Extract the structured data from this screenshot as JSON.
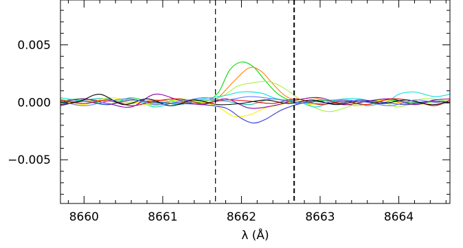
{
  "chart_data": {
    "type": "line",
    "title": "",
    "xlabel": "λ (Å)",
    "ylabel": "",
    "xlim": [
      8659.7,
      8664.65
    ],
    "ylim": [
      -0.0088,
      0.0089
    ],
    "grid": false,
    "x_ticks": [
      8660,
      8661,
      8662,
      8663,
      8664
    ],
    "x_tick_labels": [
      "8660",
      "8661",
      "8662",
      "8663",
      "8664"
    ],
    "y_ticks": [
      -0.005,
      0.0,
      0.005
    ],
    "y_tick_labels": [
      "−0.005",
      "0.000",
      "0.005"
    ],
    "vertical_lines": [
      {
        "x": 8661.67,
        "style": "dashed",
        "width": "thin"
      },
      {
        "x": 8662.67,
        "style": "dashed",
        "width": "thick"
      }
    ],
    "series": [
      {
        "color": "#00dd00",
        "x": [
          8659.7,
          8660.0,
          8660.3,
          8660.6,
          8660.9,
          8661.2,
          8661.5,
          8661.7,
          8661.85,
          8662.0,
          8662.15,
          8662.3,
          8662.45,
          8662.6,
          8662.75,
          8663.0,
          8663.3,
          8663.6,
          8663.9,
          8664.2,
          8664.5,
          8664.65
        ],
        "y": [
          0.0001,
          0.0003,
          -0.0002,
          0.0004,
          -0.0001,
          0.0002,
          0.0,
          0.0008,
          0.0028,
          0.0035,
          0.0031,
          0.0019,
          0.0008,
          0.0002,
          -0.0001,
          0.0002,
          -0.0002,
          0.0001,
          0.0002,
          -0.0001,
          0.0001,
          0.0
        ]
      },
      {
        "color": "#ff7f00",
        "x": [
          8659.7,
          8660.0,
          8660.3,
          8660.6,
          8660.9,
          8661.2,
          8661.5,
          8661.7,
          8661.9,
          8662.1,
          8662.25,
          8662.4,
          8662.55,
          8662.7,
          8662.9,
          8663.2,
          8663.5,
          8663.8,
          8664.1,
          8664.4,
          8664.65
        ],
        "y": [
          -0.0002,
          0.0002,
          0.0001,
          -0.0001,
          0.0002,
          0.0,
          -0.0001,
          0.0004,
          0.0018,
          0.003,
          0.0027,
          0.0016,
          0.0006,
          0.0002,
          0.0004,
          0.0,
          -0.0003,
          0.0002,
          -0.0001,
          0.0001,
          -0.0001
        ]
      },
      {
        "color": "#aaee44",
        "x": [
          8659.7,
          8660.0,
          8660.3,
          8660.6,
          8660.9,
          8661.2,
          8661.5,
          8661.75,
          8661.95,
          8662.15,
          8662.35,
          8662.55,
          8662.8,
          8663.1,
          8663.4,
          8663.7,
          8664.0,
          8664.3,
          8664.65
        ],
        "y": [
          0.0003,
          -0.0001,
          0.0002,
          0.0,
          -0.0002,
          0.0003,
          0.0001,
          0.0005,
          0.0014,
          0.0017,
          0.0018,
          0.0012,
          0.0,
          -0.0008,
          -0.0003,
          0.0002,
          -0.0004,
          0.0003,
          0.0001
        ]
      },
      {
        "color": "#00dddd",
        "x": [
          8659.7,
          8660.0,
          8660.3,
          8660.6,
          8660.9,
          8661.2,
          8661.5,
          8661.8,
          8662.0,
          8662.25,
          8662.45,
          8662.7,
          8662.95,
          8663.2,
          8663.5,
          8663.8,
          8664.0,
          8664.2,
          8664.45,
          8664.65
        ],
        "y": [
          0.0004,
          0.0001,
          -0.0002,
          0.0003,
          -0.0004,
          0.0001,
          0.0003,
          0.0006,
          0.0009,
          0.0008,
          0.0003,
          0.0001,
          -0.0004,
          0.0002,
          0.0003,
          -0.0001,
          0.0007,
          0.0009,
          0.0005,
          0.0007
        ]
      },
      {
        "color": "#11bbaa",
        "x": [
          8659.7,
          8660.0,
          8660.3,
          8660.6,
          8660.9,
          8661.2,
          8661.5,
          8661.8,
          8662.1,
          8662.4,
          8662.7,
          8663.0,
          8663.3,
          8663.6,
          8663.9,
          8664.2,
          8664.45,
          8664.65
        ],
        "y": [
          -0.0001,
          0.0002,
          0.0003,
          -0.0003,
          0.0001,
          -0.0002,
          0.0002,
          0.0001,
          -0.0002,
          0.0003,
          -0.0001,
          0.0001,
          0.0002,
          -0.0003,
          0.0001,
          0.0,
          0.0001,
          0.0
        ]
      },
      {
        "color": "#ffee00",
        "x": [
          8659.7,
          8660.0,
          8660.3,
          8660.6,
          8660.9,
          8661.2,
          8661.5,
          8661.7,
          8661.9,
          8662.1,
          8662.3,
          8662.5,
          8662.7,
          8662.9,
          8663.2,
          8663.5,
          8663.8,
          8664.1,
          8664.4,
          8664.65
        ],
        "y": [
          0.0002,
          -0.0002,
          0.0004,
          0.0001,
          -0.0003,
          0.0002,
          0.0,
          -0.0004,
          -0.0012,
          -0.0011,
          -0.0005,
          -0.0002,
          0.0001,
          -0.0002,
          0.0001,
          -0.0003,
          0.0002,
          -0.0002,
          -0.0001,
          0.0001
        ]
      },
      {
        "color": "#3333dd",
        "x": [
          8659.7,
          8660.0,
          8660.3,
          8660.6,
          8660.9,
          8661.2,
          8661.5,
          8661.8,
          8662.0,
          8662.15,
          8662.3,
          8662.5,
          8662.7,
          8662.9,
          8663.2,
          8663.5,
          8663.8,
          8664.1,
          8664.4,
          8664.65
        ],
        "y": [
          -0.0003,
          0.0001,
          -0.0002,
          0.0002,
          0.0,
          -0.0001,
          -0.0002,
          -0.0005,
          -0.0014,
          -0.0018,
          -0.0015,
          -0.0007,
          -0.0002,
          0.0001,
          -0.0001,
          0.0002,
          0.0,
          -0.0002,
          0.0001,
          0.0
        ]
      },
      {
        "color": "#8800aa",
        "x": [
          8659.7,
          8660.0,
          8660.3,
          8660.6,
          8660.9,
          8661.2,
          8661.5,
          8661.8,
          8662.1,
          8662.4,
          8662.7,
          8663.0,
          8663.3,
          8663.6,
          8663.9,
          8664.2,
          8664.45,
          8664.65
        ],
        "y": [
          0.0,
          0.0003,
          -0.0001,
          -0.0004,
          0.0007,
          0.0002,
          -0.0002,
          0.0003,
          -0.0005,
          -0.0003,
          0.0002,
          0.0004,
          -0.0002,
          0.0001,
          0.0003,
          -0.0002,
          0.0002,
          0.0003
        ]
      },
      {
        "color": "#dd0000",
        "x": [
          8659.7,
          8660.0,
          8660.3,
          8660.6,
          8660.9,
          8661.2,
          8661.5,
          8661.8,
          8662.1,
          8662.4,
          8662.7,
          8663.0,
          8663.3,
          8663.6,
          8663.9,
          8664.2,
          8664.45,
          8664.65
        ],
        "y": [
          0.0002,
          -0.0001,
          0.0002,
          -0.0003,
          0.0001,
          0.0003,
          -0.0001,
          0.0002,
          0.0001,
          -0.0001,
          0.0003,
          -0.0002,
          0.0001,
          -0.0002,
          0.0003,
          0.0001,
          -0.0003,
          0.0002
        ]
      },
      {
        "color": "#000000",
        "x": [
          8659.7,
          8659.95,
          8660.2,
          8660.5,
          8660.8,
          8661.1,
          8661.4,
          8661.7,
          8662.0,
          8662.3,
          8662.6,
          8662.9,
          8663.2,
          8663.5,
          8663.8,
          8664.1,
          8664.4,
          8664.65
        ],
        "y": [
          -0.0002,
          0.0001,
          0.0007,
          -0.0002,
          0.0003,
          -0.0003,
          0.0002,
          -0.0002,
          -0.0001,
          0.0002,
          -0.0001,
          0.0002,
          -0.0002,
          0.0001,
          -0.0001,
          0.0002,
          -0.0002,
          0.0
        ]
      },
      {
        "color": "#6677ff",
        "x": [
          8659.7,
          8660.0,
          8660.3,
          8660.6,
          8660.9,
          8661.2,
          8661.5,
          8661.8,
          8662.1,
          8662.4,
          8662.7,
          8663.0,
          8663.3,
          8663.6,
          8663.9,
          8664.2,
          8664.45,
          8664.65
        ],
        "y": [
          0.0001,
          -0.0003,
          0.0001,
          0.0003,
          -0.0002,
          0.0,
          0.0004,
          0.0002,
          0.0005,
          0.0003,
          0.0,
          -0.0001,
          0.0002,
          0.0,
          -0.0003,
          0.0002,
          0.0,
          -0.0001
        ]
      }
    ]
  }
}
